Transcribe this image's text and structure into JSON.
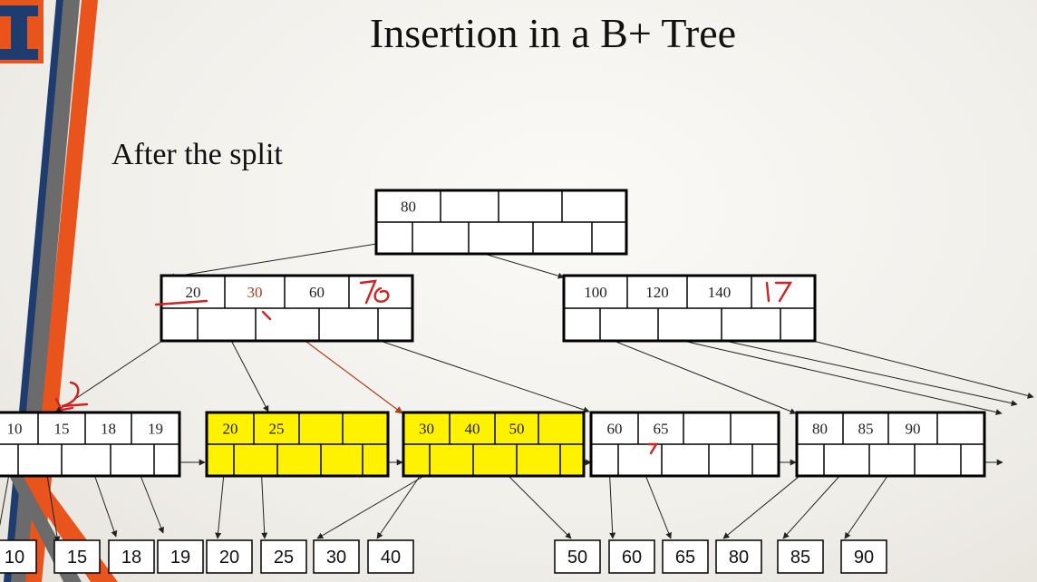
{
  "slide": {
    "title": "Insertion in a B+ Tree",
    "subtitle": "After the split"
  },
  "colors": {
    "highlight": "#fff200",
    "logo_orange": "#e8541c",
    "logo_navy": "#1f3c6e",
    "annotation_red": "#d42020",
    "arrow_brown": "#b0401a"
  },
  "tree": {
    "root": {
      "keys": [
        "80",
        "",
        "",
        ""
      ]
    },
    "internal": [
      {
        "keys": [
          "20",
          "30",
          "60",
          ""
        ]
      },
      {
        "keys": [
          "100",
          "120",
          "140",
          ""
        ]
      }
    ],
    "leaves": [
      {
        "keys": [
          "10",
          "15",
          "18",
          "19"
        ],
        "highlight": false
      },
      {
        "keys": [
          "20",
          "25",
          "",
          ""
        ],
        "highlight": true
      },
      {
        "keys": [
          "30",
          "40",
          "50",
          ""
        ],
        "highlight": true
      },
      {
        "keys": [
          "60",
          "65",
          "",
          ""
        ],
        "highlight": false
      },
      {
        "keys": [
          "80",
          "85",
          "90",
          ""
        ],
        "highlight": false
      }
    ]
  },
  "records": [
    "10",
    "15",
    "18",
    "19",
    "20",
    "25",
    "30",
    "40",
    "50",
    "60",
    "65",
    "80",
    "85",
    "90"
  ]
}
